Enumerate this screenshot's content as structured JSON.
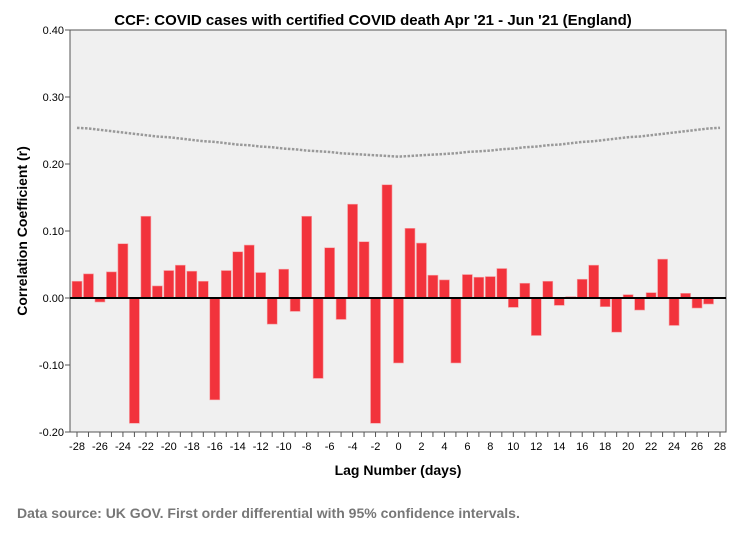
{
  "chart_data": {
    "type": "bar",
    "title": "CCF: COVID cases with certified COVID death Apr '21 - Jun '21 (England)",
    "xlabel": "Lag Number (days)",
    "ylabel": "Correlation Coefficient (r)",
    "ylim": [
      -0.2,
      0.4
    ],
    "xlim": [
      -28,
      28
    ],
    "yticks": [
      "-0.20",
      "-0.10",
      "0.00",
      "0.10",
      "0.20",
      "0.30",
      "0.40"
    ],
    "ytick_values": [
      -0.2,
      -0.1,
      0,
      0.1,
      0.2,
      0.3,
      0.4
    ],
    "xtick_labels": [
      "-28",
      "-26",
      "-24",
      "-22",
      "-20",
      "-18",
      "-16",
      "-14",
      "-12",
      "-10",
      "-8",
      "-6",
      "-4",
      "-2",
      "0",
      "2",
      "4",
      "6",
      "8",
      "10",
      "12",
      "14",
      "16",
      "18",
      "20",
      "22",
      "24",
      "26",
      "28"
    ],
    "x": [
      -28,
      -27,
      -26,
      -25,
      -24,
      -23,
      -22,
      -21,
      -20,
      -19,
      -18,
      -17,
      -16,
      -15,
      -14,
      -13,
      -12,
      -11,
      -10,
      -9,
      -8,
      -7,
      -6,
      -5,
      -4,
      -3,
      -2,
      -1,
      0,
      1,
      2,
      3,
      4,
      5,
      6,
      7,
      8,
      9,
      10,
      11,
      12,
      13,
      14,
      15,
      16,
      17,
      18,
      19,
      20,
      21,
      22,
      23,
      24,
      25,
      26,
      27,
      28
    ],
    "values": [
      0.025,
      0.036,
      -0.006,
      0.039,
      0.081,
      -0.187,
      0.122,
      0.018,
      0.041,
      0.049,
      0.04,
      0.025,
      -0.152,
      0.041,
      0.069,
      0.079,
      0.038,
      -0.039,
      0.043,
      -0.02,
      0.122,
      -0.12,
      0.075,
      -0.032,
      0.14,
      0.084,
      -0.187,
      0.169,
      -0.097,
      0.104,
      0.082,
      0.034,
      0.027,
      -0.097,
      0.035,
      0.031,
      0.032,
      0.044,
      -0.014,
      0.022,
      -0.056,
      0.025,
      -0.011,
      0.002,
      0.028,
      0.049,
      -0.013,
      -0.051,
      0.005,
      -0.018,
      0.008,
      0.058,
      -0.041,
      0.007,
      -0.015,
      -0.009,
      0.0
    ],
    "ci_upper": [
      0.254,
      0.253,
      0.251,
      0.249,
      0.247,
      0.245,
      0.243,
      0.241,
      0.24,
      0.238,
      0.236,
      0.234,
      0.233,
      0.231,
      0.229,
      0.228,
      0.226,
      0.225,
      0.223,
      0.222,
      0.22,
      0.219,
      0.218,
      0.216,
      0.215,
      0.214,
      0.213,
      0.212,
      0.211,
      0.212,
      0.213,
      0.214,
      0.215,
      0.216,
      0.218,
      0.219,
      0.22,
      0.222,
      0.223,
      0.225,
      0.226,
      0.228,
      0.229,
      0.231,
      0.233,
      0.234,
      0.236,
      0.238,
      0.24,
      0.241,
      0.243,
      0.245,
      0.247,
      0.249,
      0.251,
      0.253,
      0.254
    ],
    "bar_color": "#f2333c",
    "ci_color": "#999999",
    "background": "#f0f0f0",
    "grid": false,
    "legend": "none"
  },
  "footer": "Data source: UK GOV. First order differential with 95% confidence intervals."
}
